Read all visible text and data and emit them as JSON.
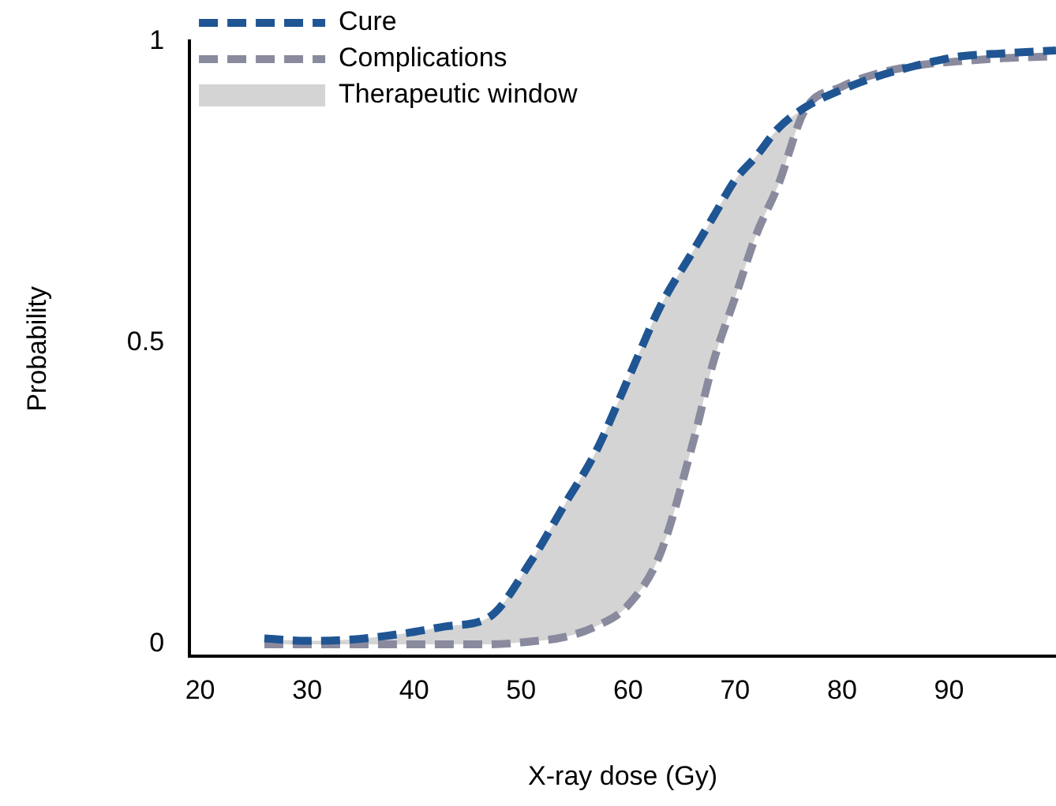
{
  "chart_data": {
    "type": "line",
    "xlabel": "X-ray dose (Gy)",
    "ylabel": "Probability",
    "xlim": [
      19,
      100
    ],
    "ylim": [
      -0.02,
      1
    ],
    "xticks": [
      20,
      30,
      40,
      50,
      60,
      70,
      80,
      90
    ],
    "yticks": [
      0,
      0.5,
      1
    ],
    "grid": false,
    "legend": "top left",
    "line_style": "dashed",
    "marker": "none",
    "series": [
      {
        "name": "Cure",
        "color": "#1f5593",
        "x": [
          26,
          30,
          34,
          39,
          43,
          47,
          51,
          54,
          57,
          60,
          63,
          66,
          68,
          70,
          72,
          74,
          76.5,
          80,
          83,
          87,
          91,
          95,
          100
        ],
        "values": [
          0.01,
          0.006,
          0.008,
          0.018,
          0.03,
          0.045,
          0.14,
          0.23,
          0.32,
          0.44,
          0.56,
          0.65,
          0.71,
          0.77,
          0.81,
          0.855,
          0.89,
          0.92,
          0.94,
          0.96,
          0.975,
          0.98,
          0.985
        ]
      },
      {
        "name": "Complications",
        "color": "#8a8a9e",
        "x": [
          26,
          30,
          34,
          39,
          43,
          47,
          51,
          54,
          57,
          60,
          63,
          66,
          68,
          70,
          72,
          74,
          76.5,
          80,
          83,
          87,
          91,
          95,
          100
        ],
        "values": [
          0,
          0,
          0,
          0,
          0,
          0,
          0.005,
          0.012,
          0.03,
          0.065,
          0.15,
          0.33,
          0.47,
          0.575,
          0.68,
          0.76,
          0.885,
          0.925,
          0.945,
          0.96,
          0.967,
          0.972,
          0.975
        ]
      },
      {
        "name": "Therapeutic window",
        "type": "area",
        "color": "#d4d4d4",
        "x": [
          26,
          30,
          34,
          39,
          43,
          47,
          51,
          54,
          57,
          60,
          63,
          66,
          68,
          70,
          72,
          74,
          76.5
        ],
        "values": [
          0.01,
          0.006,
          0.008,
          0.018,
          0.03,
          0.045,
          0.14,
          0.23,
          0.32,
          0.44,
          0.56,
          0.65,
          0.71,
          0.77,
          0.81,
          0.855,
          0.89
        ]
      }
    ]
  }
}
